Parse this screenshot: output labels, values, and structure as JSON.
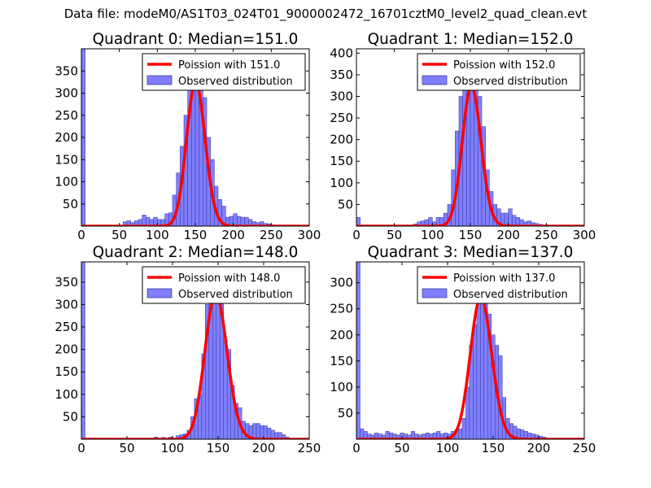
{
  "suptitle": "Data file: modeM0/AS1T03_024T01_9000002472_16701cztM0_level2_quad_clean.evt",
  "colors": {
    "hist_fill": "#7f7fff",
    "hist_edge": "#333399",
    "poisson": "#ff0000"
  },
  "chart_data": [
    {
      "type": "bar",
      "title": "Quadrant 0: Median=151.0",
      "median": 151.0,
      "xlim": [
        0,
        300
      ],
      "ylim": [
        0,
        400
      ],
      "xticks": [
        0,
        50,
        100,
        150,
        200,
        250,
        300
      ],
      "yticks": [
        50,
        100,
        150,
        200,
        250,
        300,
        350
      ],
      "bin_width": 5,
      "bins": [
        [
          0,
          400
        ],
        [
          55,
          10
        ],
        [
          60,
          12
        ],
        [
          65,
          8
        ],
        [
          70,
          12
        ],
        [
          75,
          15
        ],
        [
          80,
          25
        ],
        [
          85,
          20
        ],
        [
          90,
          15
        ],
        [
          95,
          20
        ],
        [
          100,
          15
        ],
        [
          105,
          15
        ],
        [
          110,
          28
        ],
        [
          115,
          30
        ],
        [
          120,
          70
        ],
        [
          125,
          120
        ],
        [
          130,
          180
        ],
        [
          135,
          250
        ],
        [
          140,
          330
        ],
        [
          145,
          370
        ],
        [
          150,
          380
        ],
        [
          155,
          350
        ],
        [
          160,
          290
        ],
        [
          165,
          200
        ],
        [
          170,
          150
        ],
        [
          175,
          90
        ],
        [
          180,
          60
        ],
        [
          185,
          45
        ],
        [
          190,
          20
        ],
        [
          195,
          22
        ],
        [
          200,
          28
        ],
        [
          205,
          22
        ],
        [
          210,
          20
        ],
        [
          215,
          20
        ],
        [
          220,
          15
        ],
        [
          225,
          10
        ],
        [
          230,
          8
        ],
        [
          235,
          10
        ],
        [
          240,
          6
        ],
        [
          245,
          5
        ],
        [
          250,
          3
        ]
      ],
      "poisson_label": "Poission with 151.0",
      "hist_label": "Observed distribution"
    },
    {
      "type": "bar",
      "title": "Quadrant 1: Median=152.0",
      "median": 152.0,
      "xlim": [
        0,
        300
      ],
      "ylim": [
        0,
        410
      ],
      "xticks": [
        0,
        50,
        100,
        150,
        200,
        250,
        300
      ],
      "yticks": [
        50,
        100,
        150,
        200,
        250,
        300,
        350,
        400
      ],
      "bin_width": 5,
      "bins": [
        [
          0,
          20
        ],
        [
          75,
          5
        ],
        [
          80,
          10
        ],
        [
          85,
          12
        ],
        [
          90,
          15
        ],
        [
          95,
          20
        ],
        [
          100,
          10
        ],
        [
          105,
          20
        ],
        [
          110,
          20
        ],
        [
          115,
          30
        ],
        [
          120,
          50
        ],
        [
          125,
          130
        ],
        [
          130,
          220
        ],
        [
          135,
          300
        ],
        [
          140,
          330
        ],
        [
          145,
          360
        ],
        [
          150,
          380
        ],
        [
          155,
          350
        ],
        [
          160,
          300
        ],
        [
          165,
          230
        ],
        [
          170,
          130
        ],
        [
          175,
          80
        ],
        [
          180,
          50
        ],
        [
          185,
          40
        ],
        [
          190,
          30
        ],
        [
          195,
          30
        ],
        [
          200,
          40
        ],
        [
          205,
          25
        ],
        [
          210,
          20
        ],
        [
          215,
          15
        ],
        [
          220,
          10
        ],
        [
          225,
          12
        ],
        [
          230,
          8
        ],
        [
          235,
          6
        ],
        [
          240,
          4
        ]
      ],
      "poisson_label": "Poission with 152.0",
      "hist_label": "Observed distribution"
    },
    {
      "type": "bar",
      "title": "Quadrant 2: Median=148.0",
      "median": 148.0,
      "xlim": [
        0,
        250
      ],
      "ylim": [
        0,
        395
      ],
      "xticks": [
        0,
        50,
        100,
        150,
        200,
        250
      ],
      "yticks": [
        50,
        100,
        150,
        200,
        250,
        300,
        350
      ],
      "bin_width": 4,
      "bins": [
        [
          0,
          395
        ],
        [
          80,
          5
        ],
        [
          88,
          4
        ],
        [
          96,
          5
        ],
        [
          104,
          8
        ],
        [
          108,
          10
        ],
        [
          112,
          12
        ],
        [
          116,
          20
        ],
        [
          120,
          50
        ],
        [
          124,
          90
        ],
        [
          128,
          100
        ],
        [
          132,
          190
        ],
        [
          136,
          300
        ],
        [
          140,
          370
        ],
        [
          144,
          380
        ],
        [
          148,
          370
        ],
        [
          152,
          320
        ],
        [
          156,
          220
        ],
        [
          160,
          200
        ],
        [
          164,
          120
        ],
        [
          168,
          80
        ],
        [
          172,
          70
        ],
        [
          176,
          40
        ],
        [
          180,
          35
        ],
        [
          184,
          30
        ],
        [
          188,
          35
        ],
        [
          192,
          35
        ],
        [
          196,
          30
        ],
        [
          200,
          30
        ],
        [
          204,
          25
        ],
        [
          208,
          20
        ],
        [
          212,
          15
        ],
        [
          216,
          15
        ],
        [
          220,
          10
        ],
        [
          224,
          5
        ]
      ],
      "poisson_label": "Poission with 148.0",
      "hist_label": "Observed distribution"
    },
    {
      "type": "bar",
      "title": "Quadrant 3: Median=137.0",
      "median": 137.0,
      "xlim": [
        0,
        250
      ],
      "ylim": [
        0,
        340
      ],
      "xticks": [
        0,
        50,
        100,
        150,
        200,
        250
      ],
      "yticks": [
        50,
        100,
        150,
        200,
        250,
        300
      ],
      "bin_width": 4,
      "bins": [
        [
          0,
          340
        ],
        [
          4,
          20
        ],
        [
          8,
          15
        ],
        [
          12,
          10
        ],
        [
          16,
          8
        ],
        [
          20,
          12
        ],
        [
          24,
          10
        ],
        [
          28,
          8
        ],
        [
          32,
          15
        ],
        [
          36,
          12
        ],
        [
          40,
          10
        ],
        [
          44,
          8
        ],
        [
          48,
          12
        ],
        [
          52,
          10
        ],
        [
          56,
          8
        ],
        [
          60,
          15
        ],
        [
          64,
          10
        ],
        [
          68,
          8
        ],
        [
          72,
          10
        ],
        [
          76,
          12
        ],
        [
          80,
          10
        ],
        [
          84,
          12
        ],
        [
          88,
          15
        ],
        [
          92,
          10
        ],
        [
          96,
          12
        ],
        [
          100,
          10
        ],
        [
          104,
          15
        ],
        [
          108,
          18
        ],
        [
          112,
          20
        ],
        [
          116,
          40
        ],
        [
          120,
          100
        ],
        [
          124,
          180
        ],
        [
          128,
          220
        ],
        [
          132,
          280
        ],
        [
          136,
          300
        ],
        [
          140,
          320
        ],
        [
          144,
          240
        ],
        [
          148,
          200
        ],
        [
          152,
          180
        ],
        [
          156,
          160
        ],
        [
          160,
          80
        ],
        [
          164,
          40
        ],
        [
          168,
          30
        ],
        [
          172,
          25
        ],
        [
          176,
          20
        ],
        [
          180,
          18
        ],
        [
          184,
          15
        ],
        [
          188,
          12
        ],
        [
          192,
          10
        ],
        [
          196,
          8
        ],
        [
          200,
          6
        ],
        [
          204,
          4
        ]
      ],
      "poisson_label": "Poission with 137.0",
      "hist_label": "Observed distribution"
    }
  ]
}
